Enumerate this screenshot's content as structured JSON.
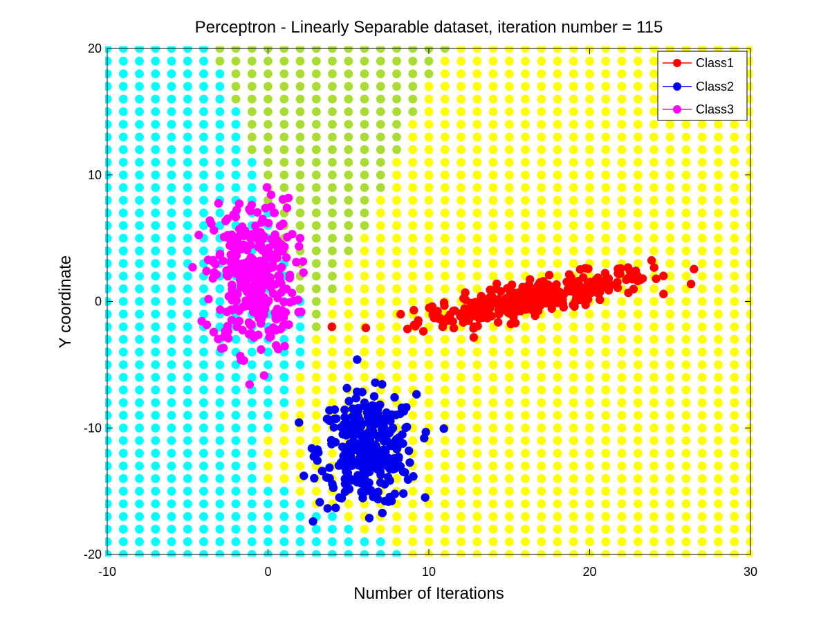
{
  "chart_data": {
    "type": "scatter",
    "title": "Perceptron - Linearly Separable dataset, iteration number = 115",
    "xlabel": "Number of Iterations",
    "ylabel": "Y coordinate",
    "xlim": [
      -10,
      30
    ],
    "ylim": [
      -20,
      20
    ],
    "xticks": [
      -10,
      0,
      10,
      20,
      30
    ],
    "yticks": [
      -20,
      -10,
      0,
      10,
      20
    ],
    "xtick_labels": [
      "-10",
      "0",
      "10",
      "20",
      "30"
    ],
    "ytick_labels": [
      "-20",
      "-10",
      "0",
      "10",
      "20"
    ],
    "grid": false,
    "legend_position": "top-right",
    "background_grid": {
      "x_start": -10,
      "x_end": 30,
      "x_step": 1,
      "y_start": -20,
      "y_end": 20,
      "y_step": 1,
      "regions": [
        {
          "region": "Class1",
          "color": "#ffff00"
        },
        {
          "region": "Class2",
          "color": "#00ffff"
        },
        {
          "region": "Class3",
          "color": "#aadd33"
        }
      ]
    },
    "series": [
      {
        "name": "Class1",
        "color": "#ff0000",
        "cluster": {
          "center": [
            16.5,
            0.3
          ],
          "sx": 3.6,
          "sy": 1.1,
          "rho": 0.8,
          "count": 320
        }
      },
      {
        "name": "Class2",
        "color": "#0000ee",
        "cluster": {
          "center": [
            6.2,
            -11.8
          ],
          "sx": 1.5,
          "sy": 2.2,
          "rho": 0.0,
          "count": 320
        }
      },
      {
        "name": "Class3",
        "color": "#ff00ff",
        "cluster": {
          "center": [
            -0.9,
            2.0
          ],
          "sx": 1.3,
          "sy": 3.0,
          "rho": 0.0,
          "count": 320
        }
      }
    ]
  }
}
